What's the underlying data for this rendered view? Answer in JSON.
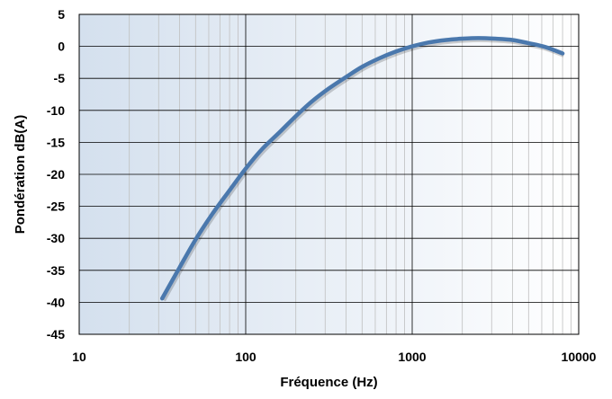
{
  "chart_data": {
    "type": "line",
    "title": "",
    "xlabel": "Fréquence (Hz)",
    "ylabel": "Pondération dB(A)",
    "xscale": "log",
    "xlim": [
      10,
      10000
    ],
    "ylim": [
      -45,
      5
    ],
    "x_ticks": [
      10,
      100,
      1000,
      10000
    ],
    "x_tick_labels": [
      "10",
      "100",
      "1000",
      "10000"
    ],
    "y_ticks": [
      5,
      0,
      -5,
      -10,
      -15,
      -20,
      -25,
      -30,
      -35,
      -40,
      -45
    ],
    "y_tick_labels": [
      "5",
      "0",
      "-5",
      "-10",
      "-15",
      "-20",
      "-25",
      "-30",
      "-35",
      "-40",
      "-45"
    ],
    "grid": true,
    "legend": false,
    "colors": {
      "line": "#4a78ad",
      "plot_bg_left": "#d4e0ee",
      "plot_bg_right": "#ffffff",
      "grid_major": "#000000",
      "grid_minor": "#bfbfbf"
    },
    "series": [
      {
        "x": [
          31.5,
          40,
          50,
          63,
          80,
          100,
          125,
          160,
          200,
          250,
          315,
          400,
          500,
          630,
          800,
          1000,
          1250,
          1600,
          2000,
          2500,
          3150,
          4000,
          5000,
          6300,
          8000
        ],
        "values": [
          -39.4,
          -34.6,
          -30.2,
          -26.2,
          -22.5,
          -19.1,
          -16.1,
          -13.4,
          -10.9,
          -8.6,
          -6.6,
          -4.8,
          -3.2,
          -1.9,
          -0.8,
          0.0,
          0.6,
          1.0,
          1.2,
          1.3,
          1.2,
          1.0,
          0.5,
          -0.1,
          -1.1
        ]
      }
    ]
  }
}
